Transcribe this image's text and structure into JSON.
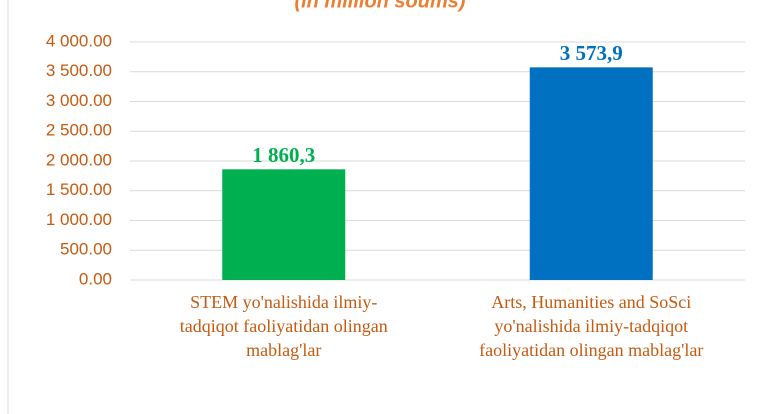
{
  "chart_data": {
    "type": "bar",
    "title": "(in million soums)",
    "categories": [
      "STEM yo'nalishida ilmiy-tadqiqot faoliyatidan olingan mablag'lar",
      "Arts, Humanities and SoSci yo'nalishida ilmiy-tadqiqot faoliyatidan olingan mablag'lar"
    ],
    "values": [
      1860.3,
      3573.9
    ],
    "value_labels": [
      "1 860,3",
      "3 573,9"
    ],
    "colors": [
      "#00b050",
      "#0070c0"
    ],
    "ylim": [
      0,
      4000
    ],
    "yticks": [
      {
        "value": 0,
        "label": "0.00"
      },
      {
        "value": 500,
        "label": "500.00"
      },
      {
        "value": 1000,
        "label": "1 000.00"
      },
      {
        "value": 1500,
        "label": "1 500.00"
      },
      {
        "value": 2000,
        "label": "2 000.00"
      },
      {
        "value": 2500,
        "label": "2 500.00"
      },
      {
        "value": 3000,
        "label": "3 000.00"
      },
      {
        "value": 3500,
        "label": "3 500.00"
      },
      {
        "value": 4000,
        "label": "4 000.00"
      }
    ],
    "grid": true
  }
}
